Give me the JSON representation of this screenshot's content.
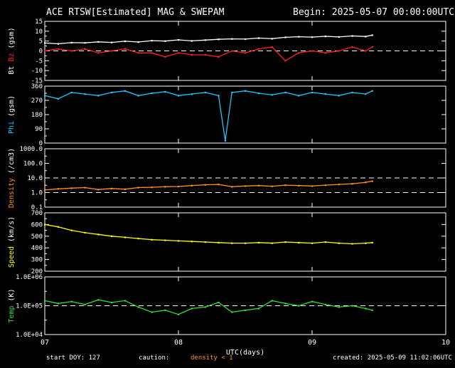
{
  "header": {
    "title": "ACE RTSW[Estimated] MAG & SWEPAM",
    "begin": "Begin: 2025-05-07 00:00:00UTC"
  },
  "footer": {
    "start_doy": "start DOY: 127",
    "caution": "caution:",
    "density_note": "density < 1",
    "created": "created: 2025-05-09 11:02:06UTC"
  },
  "colors": {
    "background": "#000000",
    "bt": "#ffffff",
    "bz": "#ff2020",
    "phi": "#1ec8ff",
    "density": "#ff9020",
    "speed": "#ffff00",
    "temp": "#30e030",
    "warning": "#ff9020"
  },
  "chart_data": {
    "type": "scatter",
    "xlabel": "UTC(days)",
    "x_ticks": [
      "07",
      "08",
      "09",
      "10"
    ],
    "xlim": [
      7,
      10
    ],
    "panels": [
      {
        "id": "bz-bt",
        "ylabel_parts": [
          {
            "text": "Bt",
            "color": "#ffffff"
          },
          {
            "text": "Bz",
            "color": "#ff2020"
          },
          {
            "text": "(gsm)",
            "color": "#ffffff"
          }
        ],
        "yticks": [
          "15",
          "10",
          "5",
          "0",
          "-5",
          "-10",
          "-15"
        ],
        "ylim": [
          -15,
          15
        ],
        "scale": "linear",
        "dashed": [
          0
        ],
        "series": [
          {
            "name": "Bt",
            "color": "#ffffff",
            "x": [
              7.0,
              7.1,
              7.2,
              7.3,
              7.4,
              7.5,
              7.6,
              7.7,
              7.8,
              7.9,
              8.0,
              8.1,
              8.2,
              8.3,
              8.4,
              8.5,
              8.6,
              8.7,
              8.8,
              8.9,
              9.0,
              9.1,
              9.2,
              9.3,
              9.4,
              9.45
            ],
            "y": [
              4,
              3.6,
              4.2,
              4.1,
              4.6,
              4.3,
              4.9,
              4.5,
              5.2,
              5.0,
              5.6,
              5.1,
              5.5,
              5.9,
              6.1,
              6.0,
              6.5,
              6.2,
              6.9,
              7.2,
              7.0,
              7.4,
              7.1,
              7.6,
              7.3,
              8.0
            ]
          },
          {
            "name": "Bz",
            "color": "#ff2020",
            "x": [
              7.0,
              7.1,
              7.2,
              7.3,
              7.4,
              7.5,
              7.6,
              7.7,
              7.8,
              7.9,
              8.0,
              8.1,
              8.2,
              8.3,
              8.4,
              8.5,
              8.6,
              8.7,
              8.8,
              8.9,
              9.0,
              9.1,
              9.2,
              9.3,
              9.4,
              9.45
            ],
            "y": [
              0,
              1,
              0,
              1,
              -1,
              0,
              1,
              -1,
              -1,
              -3,
              -1,
              -2,
              -2,
              -3,
              0,
              -1,
              1,
              2,
              -5,
              -1,
              0,
              -1,
              0,
              2,
              0,
              2
            ]
          }
        ]
      },
      {
        "id": "phi",
        "ylabel_parts": [
          {
            "text": "Phi",
            "color": "#1ec8ff"
          },
          {
            "text": "(gsm)",
            "color": "#ffffff"
          }
        ],
        "yticks": [
          "360",
          "270",
          "180",
          "90",
          "0"
        ],
        "ylim": [
          0,
          360
        ],
        "scale": "linear",
        "dashed": [],
        "series": [
          {
            "name": "Phi",
            "color": "#1ec8ff",
            "x": [
              7.0,
              7.1,
              7.2,
              7.3,
              7.4,
              7.5,
              7.6,
              7.7,
              7.8,
              7.9,
              8.0,
              8.1,
              8.2,
              8.3,
              8.35,
              8.4,
              8.5,
              8.6,
              8.7,
              8.8,
              8.9,
              9.0,
              9.1,
              9.2,
              9.3,
              9.4,
              9.45
            ],
            "y": [
              300,
              280,
              320,
              310,
              300,
              320,
              330,
              300,
              315,
              325,
              300,
              310,
              320,
              300,
              15,
              320,
              330,
              315,
              305,
              320,
              300,
              320,
              310,
              300,
              320,
              310,
              330
            ]
          }
        ]
      },
      {
        "id": "density",
        "ylabel_parts": [
          {
            "text": "Density",
            "color": "#ff9020"
          },
          {
            "text": "(/cm3)",
            "color": "#ffffff"
          }
        ],
        "yticks": [
          "1000.0",
          "100.0",
          "10.0",
          "1.0",
          "0.1"
        ],
        "ylim": [
          0.1,
          1000
        ],
        "scale": "log",
        "dashed": [
          1,
          10
        ],
        "series": [
          {
            "name": "Density",
            "color": "#ff9020",
            "x": [
              7.0,
              7.1,
              7.2,
              7.3,
              7.4,
              7.5,
              7.6,
              7.7,
              7.8,
              7.9,
              8.0,
              8.1,
              8.2,
              8.3,
              8.4,
              8.5,
              8.6,
              8.7,
              8.8,
              8.9,
              9.0,
              9.1,
              9.2,
              9.3,
              9.4,
              9.45
            ],
            "y": [
              1.5,
              1.8,
              2.0,
              2.2,
              1.6,
              1.9,
              1.7,
              2.2,
              2.3,
              2.5,
              2.6,
              3.0,
              3.4,
              3.6,
              2.5,
              2.8,
              3.0,
              2.7,
              3.2,
              3.0,
              2.8,
              3.2,
              3.6,
              4.0,
              5.0,
              6.0
            ]
          }
        ]
      },
      {
        "id": "speed",
        "ylabel_parts": [
          {
            "text": "Speed",
            "color": "#ffff00"
          },
          {
            "text": "(km/s)",
            "color": "#ffffff"
          }
        ],
        "yticks": [
          "700",
          "600",
          "500",
          "400",
          "300",
          "200"
        ],
        "ylim": [
          200,
          700
        ],
        "scale": "linear",
        "dashed": [],
        "series": [
          {
            "name": "Speed",
            "color": "#ffff00",
            "x": [
              7.0,
              7.1,
              7.2,
              7.3,
              7.4,
              7.5,
              7.6,
              7.7,
              7.8,
              7.9,
              8.0,
              8.1,
              8.2,
              8.3,
              8.4,
              8.5,
              8.6,
              8.7,
              8.8,
              8.9,
              9.0,
              9.1,
              9.2,
              9.3,
              9.4,
              9.45
            ],
            "y": [
              600,
              580,
              550,
              530,
              515,
              500,
              490,
              480,
              470,
              465,
              460,
              455,
              450,
              445,
              440,
              440,
              445,
              440,
              450,
              445,
              440,
              450,
              440,
              435,
              440,
              445
            ]
          }
        ]
      },
      {
        "id": "temp",
        "ylabel_parts": [
          {
            "text": "Temp",
            "color": "#30e030"
          },
          {
            "text": "(K)",
            "color": "#ffffff"
          }
        ],
        "yticks": [
          "1.0E+06",
          "1.0E+05",
          "1.0E+04"
        ],
        "ylim": [
          10000,
          1000000
        ],
        "scale": "log",
        "dashed": [
          100000
        ],
        "series": [
          {
            "name": "Temp",
            "color": "#30e030",
            "x": [
              7.0,
              7.1,
              7.2,
              7.3,
              7.4,
              7.5,
              7.6,
              7.7,
              7.8,
              7.9,
              8.0,
              8.1,
              8.2,
              8.3,
              8.4,
              8.5,
              8.6,
              8.7,
              8.8,
              8.9,
              9.0,
              9.1,
              9.2,
              9.3,
              9.4,
              9.45
            ],
            "y": [
              150000,
              120000,
              140000,
              110000,
              160000,
              130000,
              150000,
              90000,
              60000,
              70000,
              50000,
              80000,
              90000,
              130000,
              60000,
              70000,
              80000,
              150000,
              120000,
              100000,
              140000,
              110000,
              90000,
              100000,
              80000,
              70000
            ]
          }
        ]
      }
    ]
  }
}
